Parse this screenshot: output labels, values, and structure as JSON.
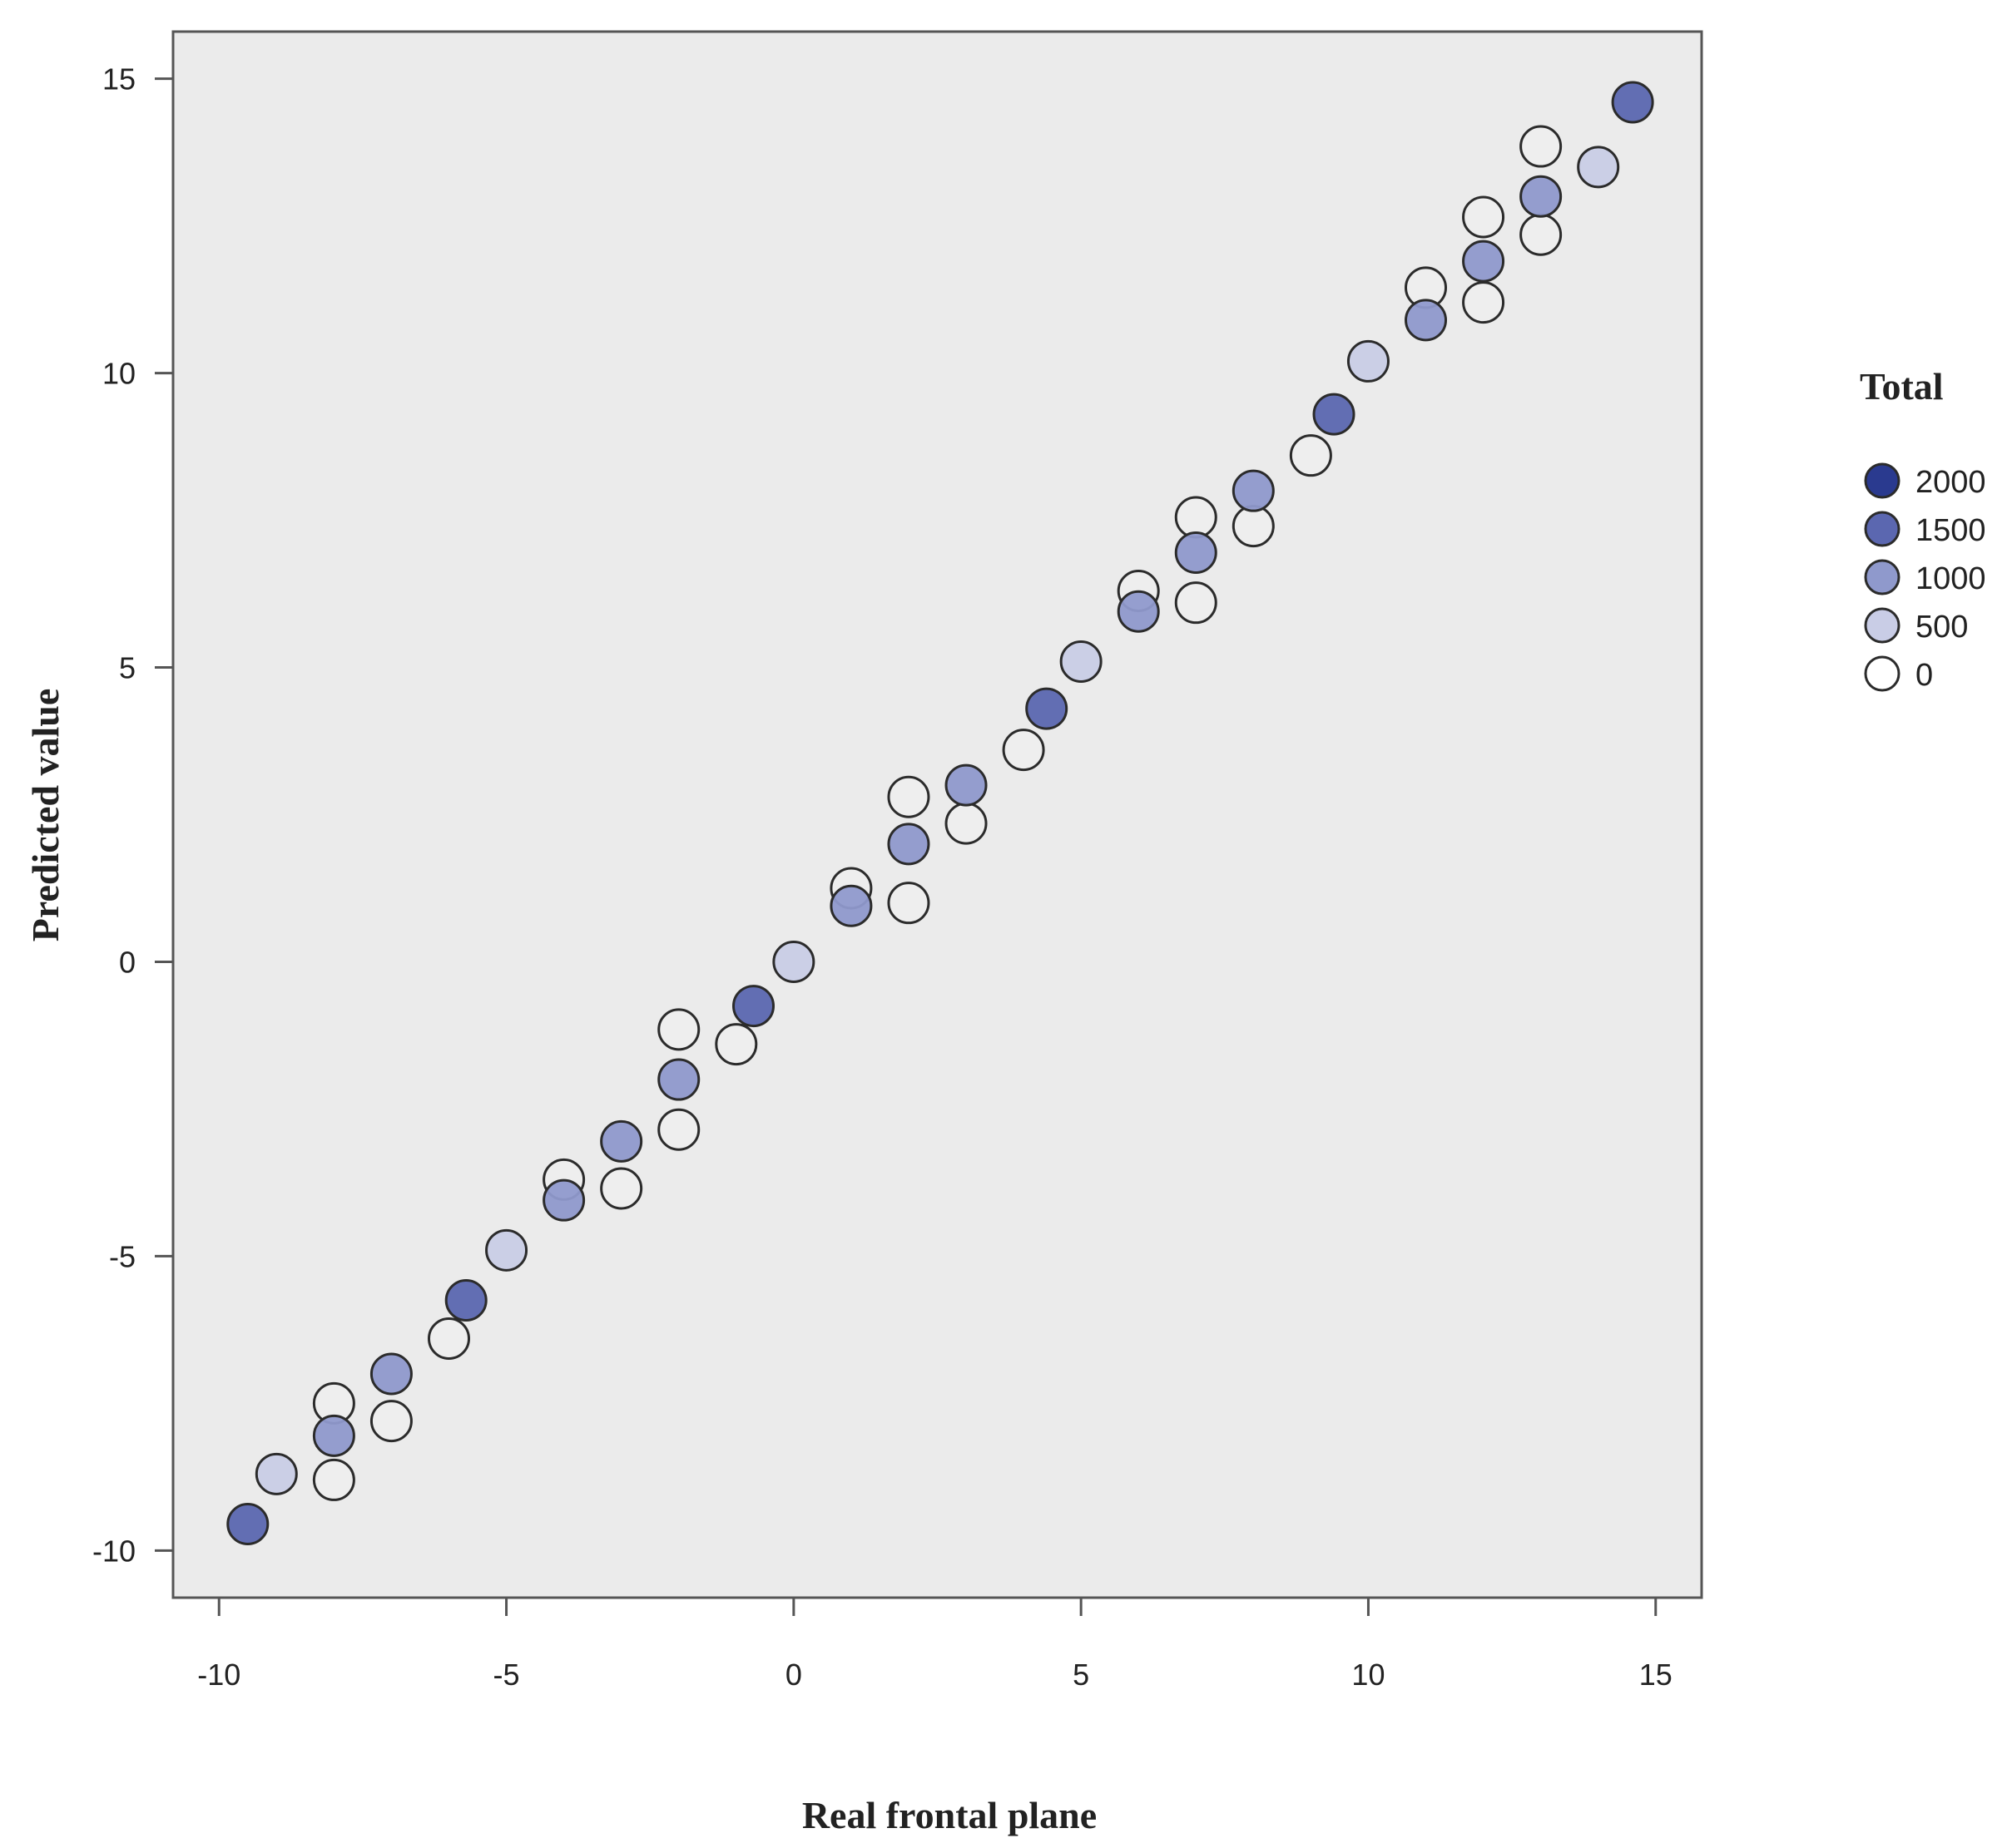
{
  "chart_data": {
    "type": "scatter",
    "xlabel": "Real frontal plane",
    "ylabel": "Predicted value",
    "xlim": [
      -10.8,
      15.8
    ],
    "ylim": [
      -10.8,
      15.8
    ],
    "x_ticks": [
      -10,
      -5,
      0,
      5,
      10,
      15
    ],
    "y_ticks": [
      -10,
      -5,
      0,
      5,
      10,
      15
    ],
    "x_tick_labels": [
      "-10",
      "-5",
      "0",
      "5",
      "10",
      "15"
    ],
    "y_tick_labels": [
      "-10",
      "-5",
      "0",
      "5",
      "10",
      "15"
    ],
    "grid": false,
    "plot_background": "#ebebeb",
    "legend": {
      "title": "Total",
      "placement": "right",
      "entries": [
        {
          "label": "2000",
          "value": 2000,
          "color": "#2a3a8f"
        },
        {
          "label": "1500",
          "value": 1500,
          "color": "#5b67b0"
        },
        {
          "label": "1000",
          "value": 1000,
          "color": "#8f99cc"
        },
        {
          "label": "500",
          "value": 500,
          "color": "#c9cde6"
        },
        {
          "label": "0",
          "value": 0,
          "color": "#ffffff"
        }
      ]
    },
    "points": [
      {
        "x": -9.5,
        "y": -9.55,
        "total": 1500
      },
      {
        "x": -9,
        "y": -8.7,
        "total": 500
      },
      {
        "x": -8,
        "y": -7.5,
        "total": 0
      },
      {
        "x": -8,
        "y": -8.05,
        "total": 1000
      },
      {
        "x": -8,
        "y": -8.8,
        "total": 0
      },
      {
        "x": -7,
        "y": -7.0,
        "total": 1000
      },
      {
        "x": -7,
        "y": -7.8,
        "total": 0
      },
      {
        "x": -6,
        "y": -6.4,
        "total": 0
      },
      {
        "x": -5.7,
        "y": -5.75,
        "total": 1500
      },
      {
        "x": -5,
        "y": -4.9,
        "total": 500
      },
      {
        "x": -4,
        "y": -3.7,
        "total": 0
      },
      {
        "x": -4,
        "y": -4.05,
        "total": 1000
      },
      {
        "x": -3,
        "y": -3.05,
        "total": 1000
      },
      {
        "x": -3,
        "y": -3.85,
        "total": 0
      },
      {
        "x": -2,
        "y": -1.15,
        "total": 0
      },
      {
        "x": -2,
        "y": -2.0,
        "total": 1000
      },
      {
        "x": -2,
        "y": -2.85,
        "total": 0
      },
      {
        "x": -1,
        "y": -1.4,
        "total": 0
      },
      {
        "x": -0.7,
        "y": -0.75,
        "total": 1500
      },
      {
        "x": 0,
        "y": 0.0,
        "total": 500
      },
      {
        "x": 1,
        "y": 1.25,
        "total": 0
      },
      {
        "x": 1,
        "y": 0.95,
        "total": 1000
      },
      {
        "x": 2,
        "y": 2.8,
        "total": 0
      },
      {
        "x": 2,
        "y": 2.0,
        "total": 1000
      },
      {
        "x": 2,
        "y": 1.0,
        "total": 0
      },
      {
        "x": 3,
        "y": 3.0,
        "total": 1000
      },
      {
        "x": 3,
        "y": 2.35,
        "total": 0
      },
      {
        "x": 4,
        "y": 3.6,
        "total": 0
      },
      {
        "x": 4.4,
        "y": 4.3,
        "total": 1500
      },
      {
        "x": 5,
        "y": 5.1,
        "total": 500
      },
      {
        "x": 6,
        "y": 6.3,
        "total": 0
      },
      {
        "x": 6,
        "y": 5.95,
        "total": 1000
      },
      {
        "x": 7,
        "y": 7.55,
        "total": 0
      },
      {
        "x": 7,
        "y": 6.95,
        "total": 1000
      },
      {
        "x": 7,
        "y": 6.1,
        "total": 0
      },
      {
        "x": 8,
        "y": 8.0,
        "total": 1000
      },
      {
        "x": 8,
        "y": 7.4,
        "total": 0
      },
      {
        "x": 9,
        "y": 8.6,
        "total": 0
      },
      {
        "x": 9.4,
        "y": 9.3,
        "total": 1500
      },
      {
        "x": 10,
        "y": 10.2,
        "total": 500
      },
      {
        "x": 11,
        "y": 11.45,
        "total": 0
      },
      {
        "x": 11,
        "y": 10.9,
        "total": 1000
      },
      {
        "x": 12,
        "y": 12.65,
        "total": 0
      },
      {
        "x": 12,
        "y": 11.9,
        "total": 1000
      },
      {
        "x": 12,
        "y": 11.2,
        "total": 0
      },
      {
        "x": 13,
        "y": 13.85,
        "total": 0
      },
      {
        "x": 13,
        "y": 13.0,
        "total": 1000
      },
      {
        "x": 13,
        "y": 12.35,
        "total": 0
      },
      {
        "x": 14,
        "y": 13.5,
        "total": 500
      },
      {
        "x": 14.6,
        "y": 14.6,
        "total": 1500
      }
    ]
  }
}
